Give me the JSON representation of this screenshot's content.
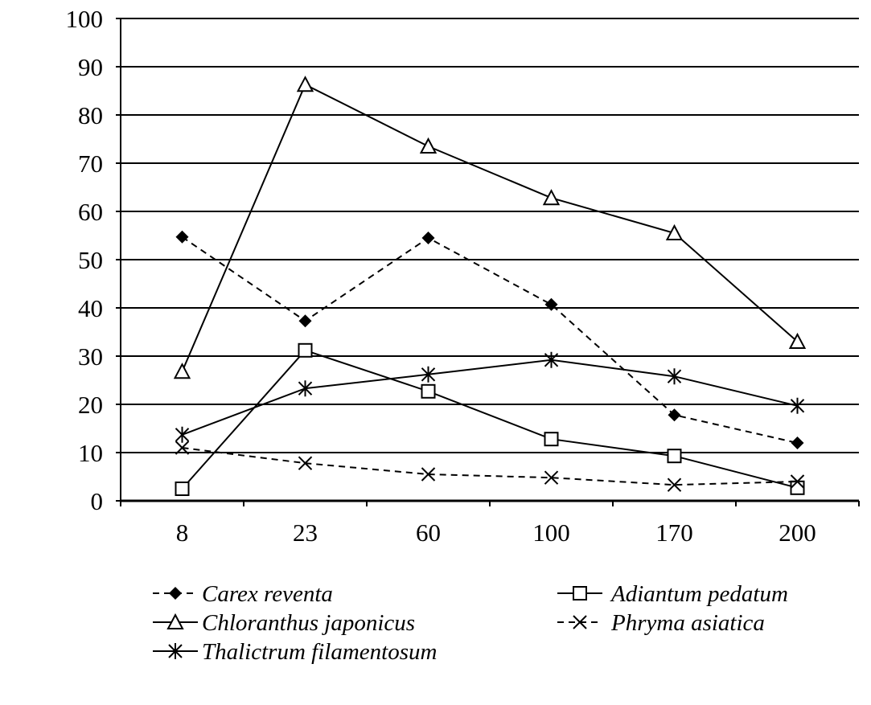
{
  "chart_data": {
    "type": "line",
    "title": "",
    "xlabel": "",
    "ylabel": "",
    "ylim": [
      0,
      100
    ],
    "yticks": [
      0,
      10,
      20,
      30,
      40,
      50,
      60,
      70,
      80,
      90,
      100
    ],
    "grid": "horizontal",
    "legend_position": "bottom",
    "categories": [
      "8",
      "23",
      "60",
      "100",
      "170",
      "200"
    ],
    "series": [
      {
        "name": "Carex reventa",
        "style": "dashed",
        "marker": "diamond-filled",
        "values": [
          54.7,
          37.3,
          54.5,
          40.7,
          17.8,
          12.0
        ]
      },
      {
        "name": "Adiantum pedatum",
        "style": "solid",
        "marker": "square-open",
        "values": [
          2.5,
          31.2,
          22.7,
          12.8,
          9.3,
          2.7
        ]
      },
      {
        "name": "Chloranthus japonicus",
        "style": "solid",
        "marker": "triangle-open",
        "values": [
          26.8,
          86.3,
          73.5,
          62.8,
          55.5,
          33.0
        ]
      },
      {
        "name": "Phryma asiatica",
        "style": "dashed",
        "marker": "x",
        "values": [
          11.0,
          7.8,
          5.5,
          4.8,
          3.3,
          4.0
        ]
      },
      {
        "name": "Thalictrum filamentosum",
        "style": "solid",
        "marker": "asterisk",
        "values": [
          13.7,
          23.3,
          26.2,
          29.2,
          25.8,
          19.7
        ]
      }
    ]
  }
}
